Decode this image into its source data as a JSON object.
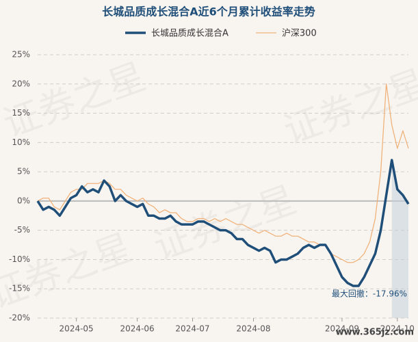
{
  "chart_data": {
    "type": "line",
    "title": "长城品质成长混合A近6个月累计收益率走势",
    "watermark": "证券之星",
    "source_mark": "www.365jz.com",
    "annotation": "最大回撤：-17.96%",
    "categories": [
      null,
      null,
      null,
      null,
      null,
      null,
      null,
      "2024-05",
      null,
      null,
      null,
      null,
      null,
      null,
      null,
      null,
      null,
      null,
      "2024-06",
      null,
      null,
      null,
      null,
      null,
      null,
      null,
      null,
      null,
      "2024-07",
      null,
      null,
      null,
      null,
      null,
      null,
      null,
      null,
      null,
      null,
      "2024-08",
      null,
      null,
      null,
      null,
      null,
      null,
      null,
      null,
      null,
      null,
      null,
      null,
      null,
      null,
      null,
      "2024-09",
      null,
      null,
      null,
      null,
      null,
      null,
      null,
      null,
      null,
      "2024-10",
      null,
      null
    ],
    "series": [
      {
        "name": "长城品质成长混合A",
        "color": "#1f4e79",
        "width": 3.5,
        "values": [
          0,
          -1.5,
          -1,
          -1.5,
          -2.5,
          -1,
          0.5,
          1,
          2.5,
          1.5,
          2,
          1.5,
          3.5,
          2.5,
          0,
          1,
          0,
          -0.5,
          -1,
          -0.5,
          -2.5,
          -2.5,
          -3,
          -3,
          -2.5,
          -3.5,
          -4,
          -4,
          -4,
          -3.5,
          -3.5,
          -4,
          -4.5,
          -5,
          -5,
          -5.5,
          -6.5,
          -6.5,
          -7.5,
          -8,
          -8.5,
          -8,
          -8.5,
          -10.5,
          -10,
          -10,
          -9.5,
          -9,
          -8,
          -7.5,
          -8,
          -7.5,
          -7.5,
          -9,
          -11,
          -13,
          -14,
          -14.5,
          -14.5,
          -13,
          -11,
          -9,
          -5,
          1,
          7,
          2,
          1,
          -0.5
        ]
      },
      {
        "name": "沪深300",
        "color": "#f0b27a",
        "width": 1.3,
        "values": [
          0,
          0.5,
          0.5,
          -1,
          -1.5,
          0,
          1.5,
          2,
          2,
          3,
          3,
          3,
          3.5,
          3,
          2,
          2,
          1,
          0.5,
          0,
          0.5,
          -0.5,
          -1,
          -2,
          -1.5,
          -2,
          -2,
          -3,
          -3.5,
          -3.5,
          -3,
          -3,
          -3.5,
          -3,
          -3.5,
          -3,
          -3.5,
          -4,
          -4,
          -4.5,
          -5,
          -5.5,
          -5,
          -5.5,
          -6,
          -6,
          -5.5,
          -6,
          -6,
          -6.5,
          -7,
          -7,
          -7.5,
          -7.5,
          -9,
          -9.5,
          -10,
          -10.5,
          -10.5,
          -10,
          -9,
          -7,
          -3,
          5,
          20,
          13,
          9,
          12,
          9
        ]
      }
    ],
    "ylim": [
      -20,
      25
    ],
    "yticks": [
      {
        "value": -20,
        "label": "-20%"
      },
      {
        "value": -15,
        "label": "-15%"
      },
      {
        "value": -10,
        "label": "-10%"
      },
      {
        "value": -5,
        "label": "-5%"
      },
      {
        "value": 0,
        "label": "0%"
      },
      {
        "value": 5,
        "label": "5%"
      },
      {
        "value": 10,
        "label": "10%"
      },
      {
        "value": 15,
        "label": "15%"
      },
      {
        "value": 20,
        "label": "20%"
      },
      {
        "value": 25,
        "label": "25%"
      }
    ],
    "grid": true
  }
}
